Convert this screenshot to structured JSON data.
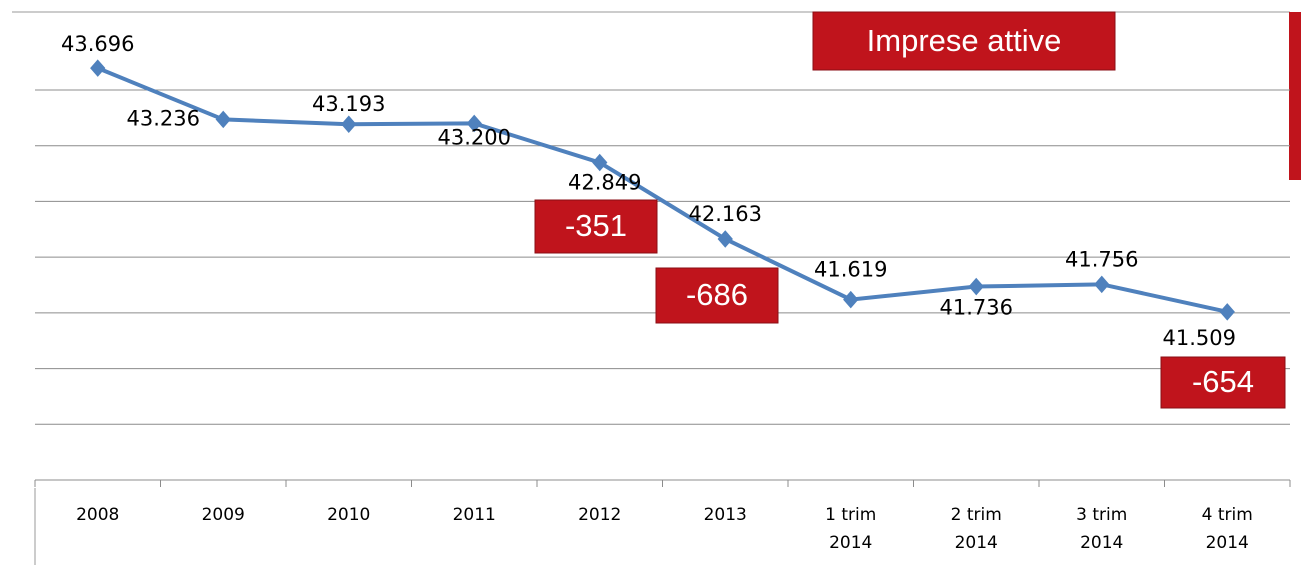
{
  "chart_data": {
    "type": "line",
    "categories": [
      "2008",
      "2009",
      "2010",
      "2011",
      "2012",
      "2013",
      "1 trim 2014",
      "2 trim 2014",
      "3 trim 2014",
      "4 trim 2014"
    ],
    "series": [
      {
        "color": "#4f81bd",
        "values": [
          43696,
          43236,
          43193,
          43200,
          42849,
          42163,
          41619,
          41736,
          41756,
          41509
        ],
        "value_labels": [
          "43.696",
          "43.236",
          "43.193",
          "43.200",
          "42.849",
          "42.163",
          "41.619",
          "41.736",
          "41.756",
          "41.509"
        ]
      }
    ],
    "ylim": [
      40000,
      44200
    ],
    "yticks": [
      40000,
      40500,
      41000,
      41500,
      42000,
      42500,
      43000,
      43500
    ],
    "grid": true,
    "annotations": [
      "Imprese attive",
      "-351",
      "-686",
      "-654"
    ]
  }
}
